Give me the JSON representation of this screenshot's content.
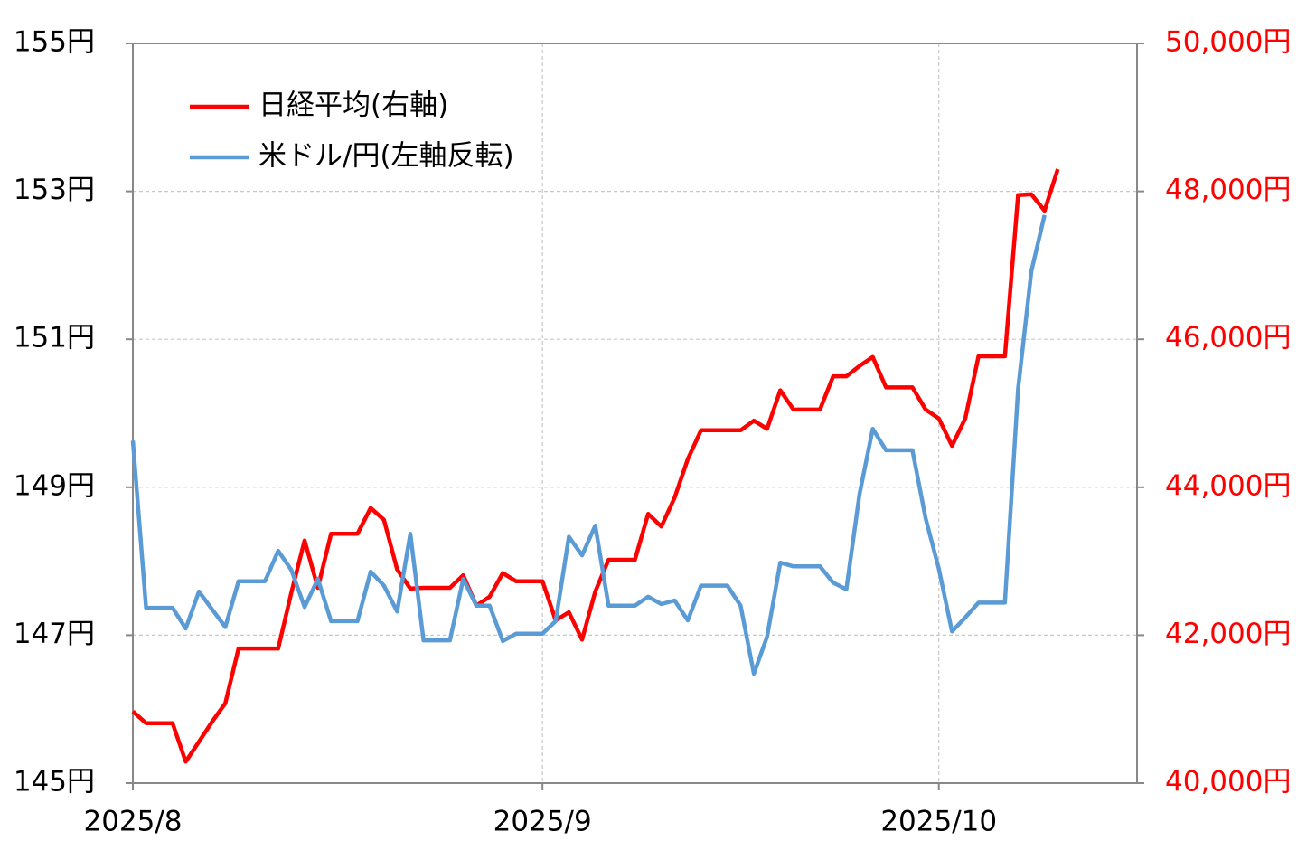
{
  "chart_data": {
    "type": "line",
    "categories": [
      "2025/8",
      null,
      null,
      null,
      null,
      null,
      null,
      null,
      null,
      null,
      null,
      null,
      null,
      null,
      null,
      null,
      null,
      null,
      null,
      null,
      null,
      null,
      null,
      null,
      null,
      null,
      null,
      null,
      null,
      null,
      null,
      "2025/9",
      null,
      null,
      null,
      null,
      null,
      null,
      null,
      null,
      null,
      null,
      null,
      null,
      null,
      null,
      null,
      null,
      null,
      null,
      null,
      null,
      null,
      null,
      null,
      null,
      null,
      null,
      null,
      null,
      null,
      "2025/10",
      null,
      null,
      null,
      null,
      null,
      null,
      null,
      null,
      null,
      null,
      null,
      null,
      null,
      null,
      null
    ],
    "series": [
      {
        "name": "日経平均(右軸)",
        "color": "#ff0000",
        "axis": "y2",
        "values": [
          40970,
          40810,
          40810,
          40810,
          40290,
          40560,
          40830,
          41080,
          41820,
          41820,
          41820,
          41820,
          42580,
          43280,
          42640,
          43370,
          43370,
          43370,
          43720,
          43560,
          42890,
          42630,
          42640,
          42640,
          42640,
          42810,
          42400,
          42520,
          42840,
          42730,
          42730,
          42730,
          42200,
          42310,
          41940,
          42590,
          43020,
          43020,
          43020,
          43640,
          43470,
          43860,
          44380,
          44770,
          44770,
          44770,
          44770,
          44900,
          44790,
          45310,
          45050,
          45050,
          45050,
          45500,
          45500,
          45640,
          45760,
          45350,
          45350,
          45350,
          45050,
          44930,
          44560,
          44930,
          45770,
          45770,
          45770,
          47950,
          47960,
          47740,
          48300,
          null,
          null,
          null,
          null,
          null,
          null
        ]
      },
      {
        "name": "米ドル/円(左軸反転)",
        "color": "#5b9bd5",
        "values": [
          149.63,
          147.37,
          147.37,
          147.37,
          147.09,
          147.59,
          147.35,
          147.11,
          147.73,
          147.73,
          147.73,
          148.14,
          147.88,
          147.38,
          147.76,
          147.19,
          147.19,
          147.19,
          147.86,
          147.67,
          147.32,
          148.37,
          146.93,
          146.93,
          146.93,
          147.76,
          147.4,
          147.4,
          146.92,
          147.02,
          147.02,
          147.02,
          147.19,
          148.33,
          148.08,
          148.48,
          147.4,
          147.4,
          147.4,
          147.52,
          147.42,
          147.47,
          147.2,
          147.67,
          147.67,
          147.67,
          147.4,
          146.48,
          146.98,
          147.98,
          147.93,
          147.93,
          147.93,
          147.71,
          147.62,
          148.91,
          149.79,
          149.5,
          149.5,
          149.5,
          148.58,
          147.9,
          147.05,
          147.24,
          147.44,
          147.44,
          147.44,
          150.33,
          151.92,
          152.68,
          null,
          null,
          null,
          null,
          null,
          null,
          null
        ]
      }
    ],
    "ylim": [
      145,
      155
    ],
    "yticks": [
      {
        "value": 145,
        "label": "145円"
      },
      {
        "value": 147,
        "label": "147円"
      },
      {
        "value": 149,
        "label": "149円"
      },
      {
        "value": 151,
        "label": "151円"
      },
      {
        "value": 153,
        "label": "153円"
      },
      {
        "value": 155,
        "label": "155円"
      }
    ],
    "y2lim": [
      40000,
      50000
    ],
    "y2ticks": [
      {
        "value": 40000,
        "label": "40,000円"
      },
      {
        "value": 42000,
        "label": "42,000円"
      },
      {
        "value": 44000,
        "label": "44,000円"
      },
      {
        "value": 46000,
        "label": "46,000円"
      },
      {
        "value": 48000,
        "label": "48,000円"
      },
      {
        "value": 50000,
        "label": "50,000円"
      }
    ],
    "grid": true,
    "legend": "upper-left"
  }
}
